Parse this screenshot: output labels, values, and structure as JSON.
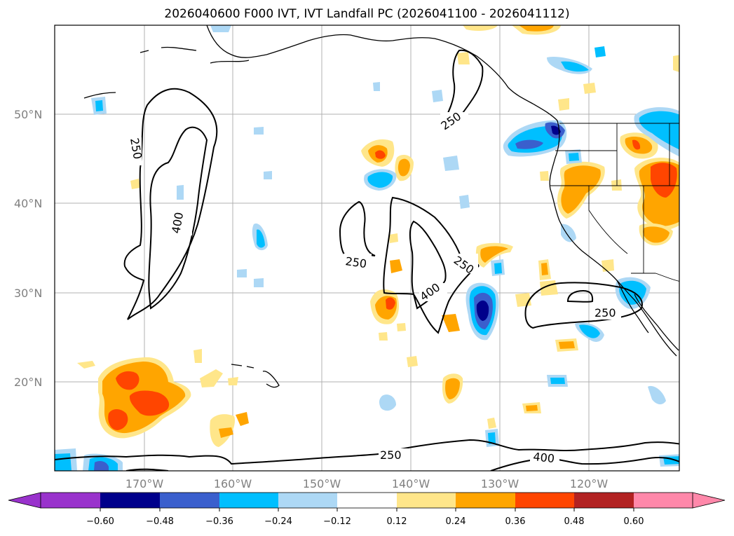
{
  "title": "2026040600 F000 IVT, IVT Landfall PC (2026041100 - 2026041112)",
  "lat_labels": [
    "50°N",
    "40°N",
    "30°N",
    "20°N"
  ],
  "lon_labels": [
    "170°W",
    "160°W",
    "150°W",
    "140°W",
    "130°W",
    "120°W"
  ],
  "contour_labels": {
    "c250_nw": "250",
    "c400_nw": "400",
    "c250_ak": "250",
    "c250_mid": "250",
    "c250_mid2": "250",
    "c400_mid": "400",
    "c250_baja": "250",
    "c250_south": "250",
    "c400_south": "400"
  },
  "colorbar": {
    "ticks": [
      "−0.60",
      "−0.48",
      "−0.36",
      "−0.24",
      "−0.12",
      "0.12",
      "0.24",
      "0.36",
      "0.48",
      "0.60"
    ],
    "colors": [
      "#9932cc",
      "#00008b",
      "#3a5fcd",
      "#00bfff",
      "#add8f5",
      "#ffffff",
      "#ffe68a",
      "#ffa500",
      "#ff4500",
      "#b22222",
      "#ff88aa"
    ]
  },
  "colors": {
    "orange": "#ffa500",
    "yellow": "#ffe68a",
    "red": "#ff4500",
    "lightblue": "#add8f5",
    "blue": "#00bfff",
    "medblue": "#3a5fcd",
    "navy": "#00008b"
  }
}
